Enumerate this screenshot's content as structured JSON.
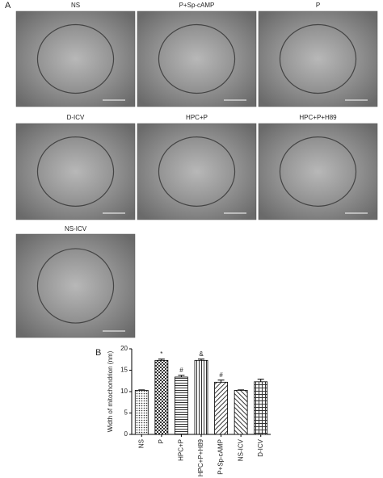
{
  "panel_a": {
    "label": "A",
    "images": [
      "NS",
      "P+Sp-cAMP",
      "P",
      "D-ICV",
      "HPC+P",
      "HPC+P+H89",
      "NS-ICV"
    ]
  },
  "chart_data": {
    "type": "bar",
    "label": "B",
    "ylabel": "Width of mitochondrion (nm)",
    "categories": [
      "NS",
      "P",
      "HPC+P",
      "HPC+P+H89",
      "P+Sp-cAMP",
      "NS-ICV",
      "D-ICV"
    ],
    "values": [
      10.3,
      17.3,
      13.4,
      17.3,
      12.2,
      10.3,
      12.3
    ],
    "errors": [
      0.1,
      0.3,
      0.4,
      0.3,
      0.5,
      0.1,
      0.6
    ],
    "significance": [
      null,
      "*",
      "#",
      "&",
      "#",
      null,
      null
    ],
    "patterns": [
      "dots",
      "checker",
      "hlines",
      "vlines",
      "diag",
      "diagrev",
      "grid"
    ],
    "ylim": [
      0,
      20
    ],
    "yticks": [
      0,
      5,
      10,
      15,
      20
    ]
  }
}
